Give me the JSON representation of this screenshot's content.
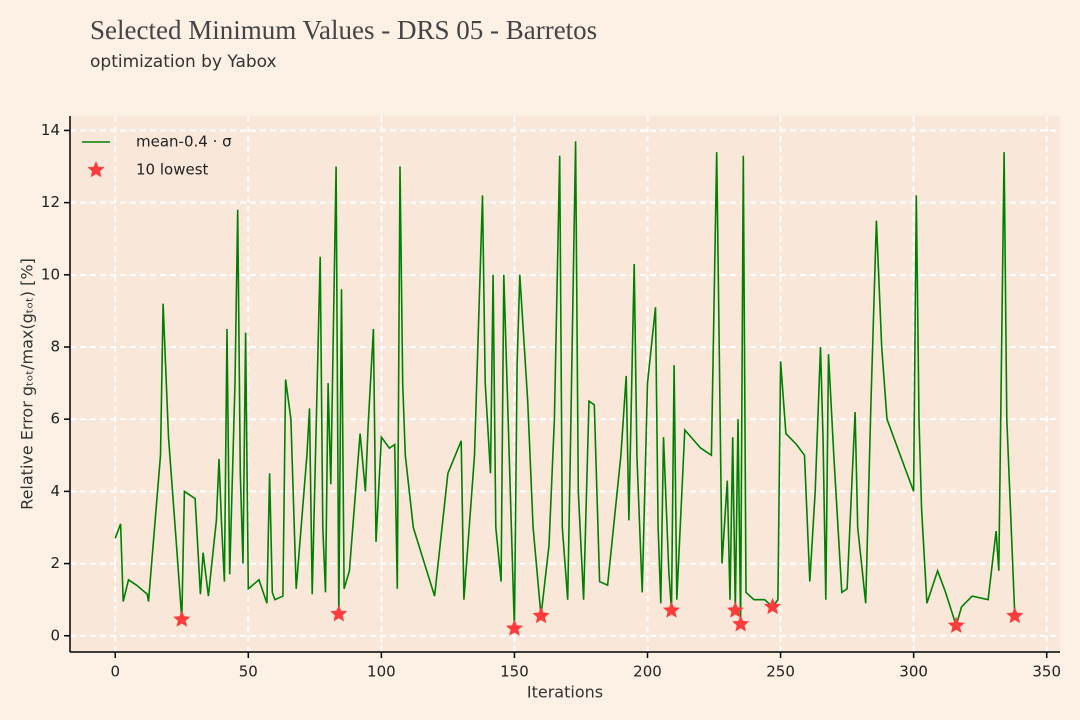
{
  "chart_data": {
    "type": "line",
    "title": "Selected Minimum Values - DRS 05 - Barretos",
    "subtitle": "optimization by Yabox",
    "x_label": "Iterations",
    "y_label": "Relative Error gₜₒₜ/max(gₜₒₜ) [%]",
    "xlim": [
      -17,
      355
    ],
    "ylim": [
      -0.45,
      14.4
    ],
    "xticks": [
      0,
      50,
      100,
      150,
      200,
      250,
      300,
      350
    ],
    "yticks": [
      0,
      2,
      4,
      6,
      8,
      10,
      12,
      14
    ],
    "grid": true,
    "legend": "upper left",
    "series": [
      {
        "name": "mean-0.4 · σ",
        "type": "line",
        "color": "#008000",
        "x": [
          0,
          2,
          3,
          5,
          8,
          12,
          12.5,
          17,
          18,
          20,
          23,
          25,
          26,
          30,
          32,
          33,
          35,
          38,
          39,
          40,
          41,
          42,
          43,
          45,
          46,
          47,
          48,
          49,
          50,
          54,
          57,
          58,
          59,
          60,
          63,
          64,
          66,
          68,
          72,
          73,
          74,
          77,
          78,
          79,
          80,
          81,
          83,
          84,
          85,
          86,
          88,
          92,
          94,
          95,
          97,
          98,
          100,
          103,
          105,
          106,
          107,
          108,
          109,
          112,
          120,
          125,
          130,
          131,
          135,
          138,
          139,
          141,
          142,
          143,
          145,
          146,
          150,
          151,
          152,
          155,
          157,
          160,
          163,
          165,
          167,
          168,
          170,
          171,
          173,
          174,
          176,
          178,
          180,
          182,
          185,
          190,
          192,
          193,
          195,
          196,
          198,
          200,
          203,
          204,
          205,
          206,
          208,
          209,
          210,
          211,
          214,
          220,
          224,
          226,
          228,
          230,
          231,
          232,
          233,
          234,
          235,
          236,
          237,
          240,
          244,
          247,
          249,
          250,
          252,
          256,
          259,
          261,
          263,
          265,
          266,
          267,
          268,
          270,
          273,
          275,
          278,
          279,
          282,
          284,
          286,
          288,
          290,
          300,
          301,
          302,
          303,
          305,
          309,
          312,
          316,
          318,
          322,
          328,
          331,
          332,
          334,
          335,
          338
        ],
        "values": [
          2.7,
          3.1,
          0.95,
          1.55,
          1.4,
          1.15,
          0.95,
          5,
          9.2,
          5.5,
          2.5,
          0.45,
          4,
          3.8,
          1.15,
          2.3,
          1.1,
          3.2,
          4.9,
          3,
          1.5,
          8.5,
          1.7,
          7,
          11.8,
          4.5,
          2,
          8.4,
          1.3,
          1.55,
          0.9,
          4.5,
          1.2,
          1.0,
          1.1,
          7.1,
          6,
          1.3,
          5,
          6.3,
          1.15,
          10.5,
          3,
          1.2,
          7,
          4.2,
          13,
          0.6,
          9.6,
          1.3,
          1.8,
          5.6,
          4,
          5.8,
          8.5,
          2.6,
          5.5,
          5.2,
          5.3,
          1.3,
          13,
          7,
          5,
          3,
          1.1,
          4.5,
          5.4,
          1.0,
          5,
          12.2,
          7,
          4.5,
          10,
          3,
          1.5,
          10,
          0.2,
          7.5,
          10,
          6.5,
          3,
          0.55,
          2.5,
          6,
          13.3,
          3,
          1.0,
          5,
          13.7,
          4,
          1.0,
          6.5,
          6.4,
          1.5,
          1.4,
          5,
          7.2,
          3.2,
          10.3,
          5,
          1.2,
          7,
          9.1,
          3,
          0.9,
          5.5,
          1.8,
          0.7,
          7.5,
          1.0,
          5.7,
          5.2,
          5,
          13.4,
          2,
          4.3,
          1.0,
          5.5,
          0.7,
          6,
          0.32,
          13.3,
          1.2,
          1,
          1,
          0.8,
          1,
          7.6,
          5.6,
          5.3,
          5.0,
          1.5,
          4,
          8,
          5.4,
          1.0,
          7.8,
          5,
          1.2,
          1.3,
          6.2,
          3,
          0.9,
          6.5,
          11.5,
          8,
          6,
          4,
          12.2,
          6,
          3.5,
          0.9,
          1.8,
          1.2,
          0.28,
          0.8,
          1.1,
          1,
          2.9,
          1.8,
          13.4,
          6,
          0.55
        ]
      },
      {
        "name": "10 lowest",
        "type": "scatter",
        "color": "#ff3b3b",
        "x": [
          25,
          84,
          150,
          160,
          209,
          233,
          235,
          247,
          316,
          338
        ],
        "values": [
          0.45,
          0.6,
          0.2,
          0.55,
          0.7,
          0.7,
          0.32,
          0.8,
          0.28,
          0.55
        ]
      }
    ]
  }
}
